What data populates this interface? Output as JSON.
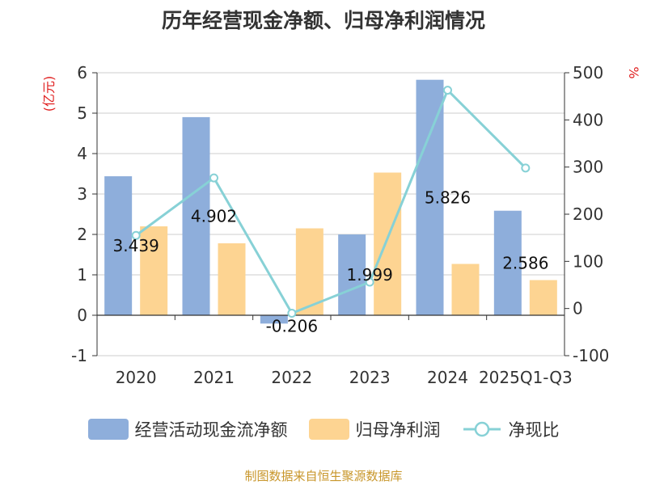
{
  "title": "历年经营现金净额、归母净利润情况",
  "source": "制图数据来自恒生聚源数据库",
  "colors": {
    "bar1": "#8eaedb",
    "bar2": "#fdd492",
    "line": "#87d1d6",
    "grid": "#cccccc",
    "axis": "#333333",
    "unit": "#e02020"
  },
  "chart_data": {
    "type": "bar",
    "categories": [
      "2020",
      "2021",
      "2022",
      "2023",
      "2024",
      "2025Q1-Q3"
    ],
    "series": [
      {
        "name": "经营活动现金流净额",
        "type": "bar",
        "axis": "left",
        "values": [
          3.439,
          4.902,
          -0.206,
          1.999,
          5.826,
          2.586
        ],
        "labels": [
          "3.439",
          "4.902",
          "-0.206",
          "1.999",
          "5.826",
          "2.586"
        ]
      },
      {
        "name": "归母净利润",
        "type": "bar",
        "axis": "left",
        "values": [
          2.2,
          1.78,
          2.15,
          3.53,
          1.27,
          0.87
        ]
      },
      {
        "name": "净现比",
        "type": "line",
        "axis": "right",
        "values": [
          155,
          277,
          -10,
          56,
          463,
          298
        ]
      }
    ],
    "y_left": {
      "label": "(亿元)",
      "min": -1,
      "max": 6,
      "ticks": [
        "-1",
        "0",
        "1",
        "2",
        "3",
        "4",
        "5",
        "6"
      ]
    },
    "y_right": {
      "label": "%",
      "min": -100,
      "max": 500,
      "ticks": [
        "-100",
        "0",
        "100",
        "200",
        "300",
        "400",
        "500"
      ]
    },
    "grid": true,
    "legend": "bottom"
  }
}
